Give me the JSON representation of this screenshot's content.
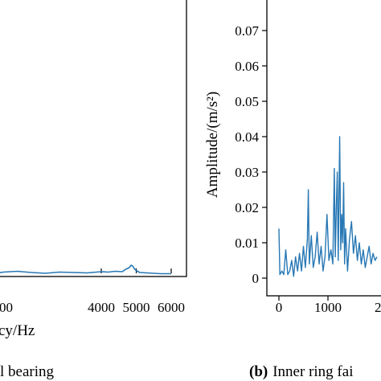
{
  "chart_data": [
    {
      "type": "line",
      "title": "",
      "caption": "l bearing",
      "xlabel": "cy/Hz",
      "ylabel": "",
      "xlim": [
        0,
        6000
      ],
      "x_ticks": [
        {
          "value": 4000,
          "label": "4000"
        },
        {
          "value": 5000,
          "label": "5000"
        },
        {
          "value": 6000,
          "label": "6000"
        }
      ],
      "x_edge_fragment": "00",
      "series": [
        {
          "color": "#2878b5",
          "x": [
            0,
            400,
            800,
            1200,
            1600,
            2000,
            2400,
            2800,
            3200,
            3600,
            4000,
            4200,
            4400,
            4600,
            4700,
            4800,
            4850,
            4900,
            4950,
            5000,
            5100,
            5300,
            5500,
            5700,
            6000
          ],
          "y": [
            0.001,
            0.0012,
            0.0009,
            0.0011,
            0.0013,
            0.001,
            0.0008,
            0.0011,
            0.001,
            0.0009,
            0.0012,
            0.0011,
            0.0013,
            0.0012,
            0.0018,
            0.0022,
            0.0028,
            0.0026,
            0.0019,
            0.0015,
            0.001,
            0.0009,
            0.0008,
            0.0007,
            0.0007
          ]
        }
      ]
    },
    {
      "type": "line",
      "title": "",
      "caption_prefix": "(b)",
      "caption": "Inner ring fai",
      "xlabel": "",
      "ylabel": "Amplitude/(m/s²)",
      "xlim": [
        0,
        2000
      ],
      "ylim": [
        0,
        0.075
      ],
      "x_ticks": [
        {
          "value": 0,
          "label": "0"
        },
        {
          "value": 1000,
          "label": "1000"
        }
      ],
      "x_edge_fragment": "2",
      "y_ticks": [
        {
          "value": 0,
          "label": "0"
        },
        {
          "value": 0.01,
          "label": "0.01"
        },
        {
          "value": 0.02,
          "label": "0.02"
        },
        {
          "value": 0.03,
          "label": "0.03"
        },
        {
          "value": 0.04,
          "label": "0.04"
        },
        {
          "value": 0.05,
          "label": "0.05"
        },
        {
          "value": 0.06,
          "label": "0.06"
        },
        {
          "value": 0.07,
          "label": "0.07"
        }
      ],
      "series": [
        {
          "color": "#2878b5",
          "x": [
            0,
            20,
            60,
            100,
            140,
            180,
            220,
            260,
            300,
            340,
            380,
            420,
            460,
            500,
            540,
            580,
            600,
            620,
            660,
            700,
            740,
            780,
            820,
            860,
            900,
            940,
            980,
            1020,
            1060,
            1100,
            1130,
            1150,
            1170,
            1190,
            1210,
            1240,
            1260,
            1280,
            1300,
            1320,
            1340,
            1360,
            1400,
            1440,
            1480,
            1520,
            1560,
            1600,
            1640,
            1680,
            1720,
            1760,
            1800,
            1840,
            1880,
            1920,
            1960,
            2000
          ],
          "y": [
            0.014,
            0.001,
            0.002,
            0.001,
            0.008,
            0.001,
            0.002,
            0.005,
            0.0005,
            0.006,
            0.002,
            0.007,
            0.002,
            0.009,
            0.003,
            0.011,
            0.025,
            0.004,
            0.012,
            0.003,
            0.006,
            0.013,
            0.004,
            0.009,
            0.002,
            0.006,
            0.018,
            0.005,
            0.008,
            0.004,
            0.031,
            0.006,
            0.02,
            0.03,
            0.005,
            0.04,
            0.008,
            0.018,
            0.01,
            0.027,
            0.004,
            0.014,
            0.002,
            0.011,
            0.016,
            0.007,
            0.012,
            0.005,
            0.01,
            0.004,
            0.008,
            0.003,
            0.006,
            0.009,
            0.004,
            0.007,
            0.005,
            0.006
          ]
        }
      ]
    }
  ]
}
